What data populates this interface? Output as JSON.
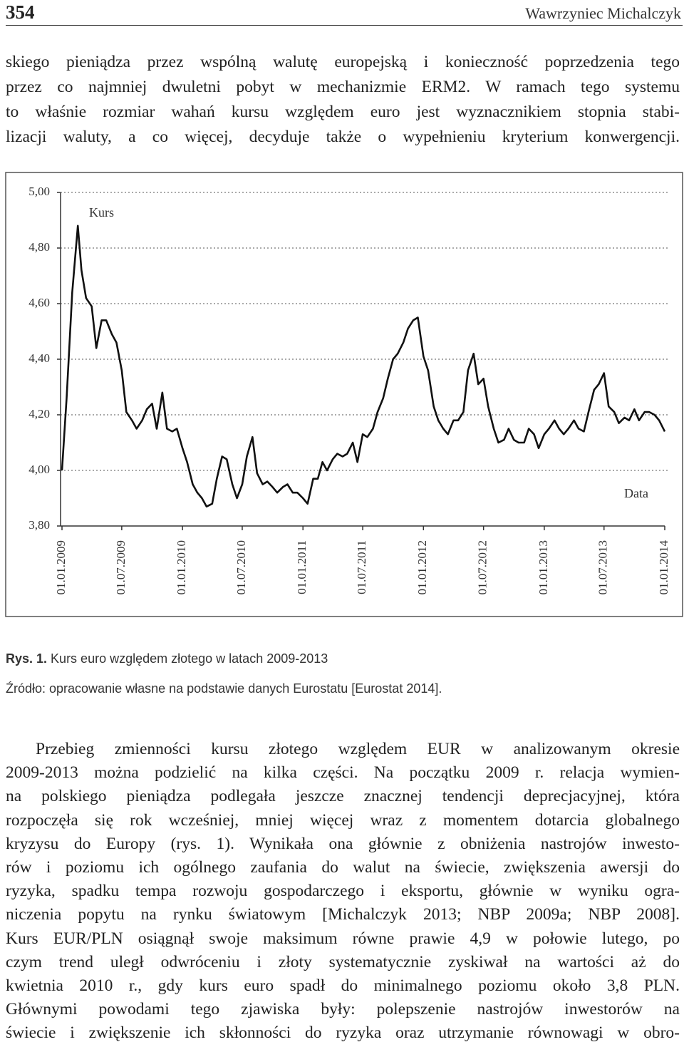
{
  "header": {
    "page_number": "354",
    "author": "Wawrzyniec Michalczyk"
  },
  "paragraphs": [
    {
      "lines": [
        "skiego pieniądza przez wspólną walutę europejską i konieczność poprzedzenia tego",
        "przez co najmniej dwuletni pobyt w mechanizmie ERM2. W ramach tego systemu",
        "to właśnie rozmiar wahań kursu względem euro jest wyznacznikiem stopnia stabi-",
        "lizacji waluty, a co więcej, decyduje także o wypełnieniu kryterium konwergencji."
      ]
    },
    {
      "lines": [
        "Przebieg zmienności kursu złotego względem EUR w analizowanym okresie",
        "2009-2013 można podzielić na kilka części. Na początku 2009 r. relacja wymien-",
        "na polskiego pieniądza podlegała jeszcze znacznej tendencji deprecjacyjnej, która",
        "rozpoczęła się rok wcześniej, mniej więcej wraz z momentem dotarcia globalnego",
        "kryzysu do Europy (rys. 1). Wynikała ona głównie z obniżenia nastrojów inwesto-",
        "rów i poziomu ich ogólnego zaufania do walut na świecie, zwiększenia awersji do",
        "ryzyka, spadku tempa rozwoju gospodarczego i eksportu, głównie w wyniku ogra-",
        "niczenia popytu na rynku światowym [Michalczyk 2013; NBP 2009a; NBP 2008].",
        "Kurs EUR/PLN osiągnął swoje maksimum równe prawie 4,9 w połowie lutego, po",
        "czym trend uległ odwróceniu i złoty systematycznie zyskiwał na wartości aż do",
        "kwietnia 2010 r., gdy kurs euro spadł do minimalnego poziomu około 3,8 PLN.",
        "Głównymi powodami tego zjawiska były: polepszenie nastrojów inwestorów na",
        "świecie i zwiększenie ich skłonności do ryzyka oraz utrzymanie równowagi w obro-"
      ]
    }
  ],
  "chart_data": {
    "type": "line",
    "y_label": "Kurs",
    "x_label": "Data",
    "color": "#111111",
    "grid": true,
    "x": [
      "01.01.2009",
      "15.01.2009",
      "01.02.2009",
      "18.02.2009",
      "01.03.2009",
      "15.03.2009",
      "01.04.2009",
      "15.04.2009",
      "01.05.2009",
      "15.05.2009",
      "01.06.2009",
      "15.06.2009",
      "01.07.2009",
      "15.07.2009",
      "01.08.2009",
      "15.08.2009",
      "01.09.2009",
      "15.09.2009",
      "01.10.2009",
      "15.10.2009",
      "01.11.2009",
      "15.11.2009",
      "01.12.2009",
      "15.12.2009",
      "01.01.2010",
      "15.01.2010",
      "01.02.2010",
      "15.02.2010",
      "01.03.2010",
      "15.03.2010",
      "01.04.2010",
      "15.04.2010",
      "01.05.2010",
      "15.05.2010",
      "01.06.2010",
      "15.06.2010",
      "01.07.2010",
      "15.07.2010",
      "01.08.2010",
      "15.08.2010",
      "01.09.2010",
      "15.09.2010",
      "01.10.2010",
      "15.10.2010",
      "01.11.2010",
      "15.11.2010",
      "01.12.2010",
      "15.12.2010",
      "01.01.2011",
      "15.01.2011",
      "01.02.2011",
      "15.02.2011",
      "01.03.2011",
      "15.03.2011",
      "01.04.2011",
      "15.04.2011",
      "01.05.2011",
      "15.05.2011",
      "01.06.2011",
      "15.06.2011",
      "01.07.2011",
      "15.07.2011",
      "01.08.2011",
      "15.08.2011",
      "01.09.2011",
      "15.09.2011",
      "01.10.2011",
      "15.10.2011",
      "01.11.2011",
      "15.11.2011",
      "01.12.2011",
      "15.12.2011",
      "01.01.2012",
      "15.01.2012",
      "01.02.2012",
      "15.02.2012",
      "01.03.2012",
      "15.03.2012",
      "01.04.2012",
      "15.04.2012",
      "01.05.2012",
      "15.05.2012",
      "01.06.2012",
      "15.06.2012",
      "01.07.2012",
      "15.07.2012",
      "01.08.2012",
      "15.08.2012",
      "01.09.2012",
      "15.09.2012",
      "01.10.2012",
      "15.10.2012",
      "01.11.2012",
      "15.11.2012",
      "01.12.2012",
      "15.12.2012",
      "01.01.2013",
      "15.01.2013",
      "01.02.2013",
      "15.02.2013",
      "01.03.2013",
      "15.03.2013",
      "01.04.2013",
      "15.04.2013",
      "01.05.2013",
      "15.05.2013",
      "01.06.2013",
      "15.06.2013",
      "01.07.2013",
      "15.07.2013",
      "01.08.2013",
      "15.08.2013",
      "01.09.2013",
      "15.09.2013",
      "01.10.2013",
      "15.10.2013",
      "01.11.2013",
      "15.11.2013",
      "01.12.2013",
      "15.12.2013",
      "01.01.2014"
    ],
    "values": [
      4.0,
      4.26,
      4.64,
      4.88,
      4.72,
      4.62,
      4.59,
      4.44,
      4.54,
      4.54,
      4.49,
      4.46,
      4.36,
      4.21,
      4.18,
      4.15,
      4.18,
      4.22,
      4.24,
      4.15,
      4.28,
      4.15,
      4.14,
      4.15,
      4.08,
      4.03,
      3.95,
      3.92,
      3.9,
      3.87,
      3.88,
      3.97,
      4.05,
      4.04,
      3.95,
      3.9,
      3.95,
      4.05,
      4.12,
      3.99,
      3.95,
      3.96,
      3.94,
      3.92,
      3.94,
      3.95,
      3.92,
      3.92,
      3.9,
      3.88,
      3.97,
      3.97,
      4.03,
      4.0,
      4.04,
      4.06,
      4.05,
      4.06,
      4.1,
      4.03,
      4.13,
      4.12,
      4.15,
      4.21,
      4.26,
      4.33,
      4.4,
      4.42,
      4.46,
      4.51,
      4.54,
      4.55,
      4.41,
      4.36,
      4.23,
      4.18,
      4.15,
      4.13,
      4.18,
      4.18,
      4.21,
      4.36,
      4.42,
      4.31,
      4.33,
      4.23,
      4.15,
      4.1,
      4.11,
      4.15,
      4.11,
      4.1,
      4.1,
      4.15,
      4.13,
      4.08,
      4.13,
      4.15,
      4.18,
      4.15,
      4.13,
      4.15,
      4.18,
      4.15,
      4.14,
      4.21,
      4.29,
      4.31,
      4.35,
      4.23,
      4.21,
      4.17,
      4.19,
      4.18,
      4.22,
      4.18,
      4.21,
      4.21,
      4.2,
      4.18,
      4.14
    ],
    "xlim": [
      "01.01.2009",
      "01.01.2014"
    ],
    "xticks": [
      "01.01.2009",
      "01.07.2009",
      "01.01.2010",
      "01.07.2010",
      "01.01.2011",
      "01.07.2011",
      "01.01.2012",
      "01.07.2012",
      "01.01.2013",
      "01.07.2013",
      "01.01.2014"
    ],
    "ylim": [
      3.8,
      5.0
    ],
    "yticks": [
      {
        "value": 3.8,
        "label": "3,80"
      },
      {
        "value": 4.0,
        "label": "4,00"
      },
      {
        "value": 4.2,
        "label": "4,20"
      },
      {
        "value": 4.4,
        "label": "4,40"
      },
      {
        "value": 4.6,
        "label": "4,60"
      },
      {
        "value": 4.8,
        "label": "4,80"
      },
      {
        "value": 5.0,
        "label": "5,00"
      }
    ]
  },
  "caption": {
    "label": "Rys. 1.",
    "text": "Kurs euro względem złotego w latach 2009-2013"
  },
  "source": "Źródło: opracowanie własne na podstawie danych Eurostatu [Eurostat 2014]."
}
